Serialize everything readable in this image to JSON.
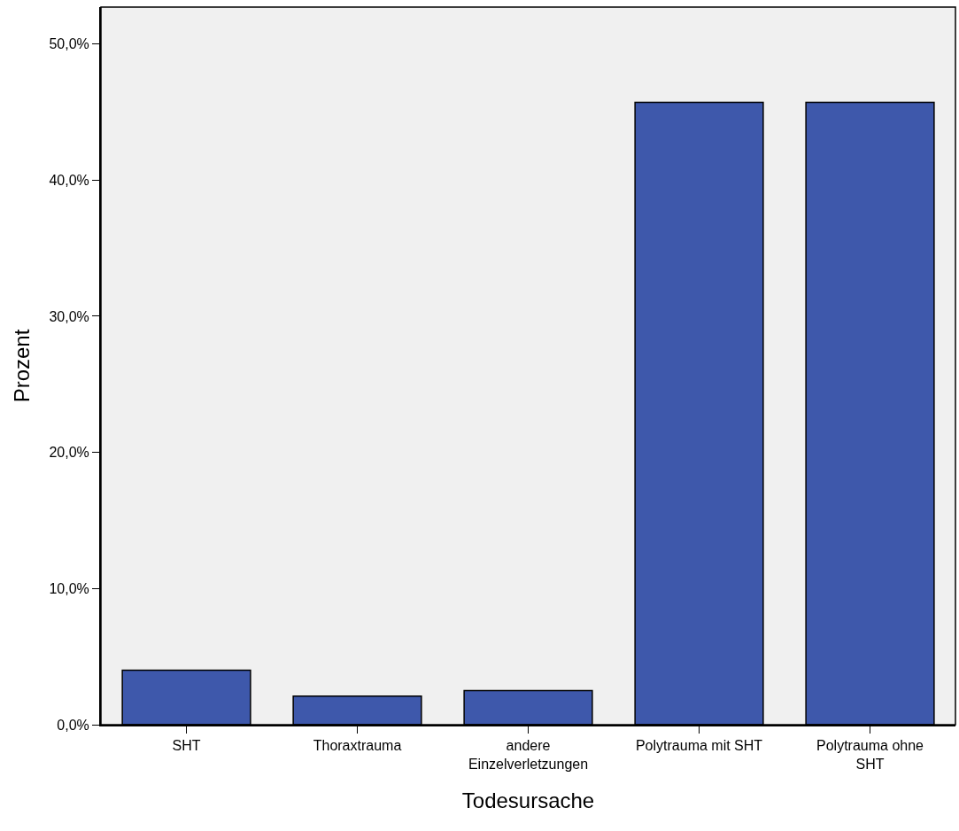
{
  "chart_data": {
    "type": "bar",
    "xlabel": "Todesursache",
    "ylabel": "Prozent",
    "categories": [
      "SHT",
      "Thoraxtrauma",
      "andere\nEinzelverletzungen",
      "Polytrauma mit SHT",
      "Polytrauma ohne\nSHT"
    ],
    "values": [
      4.0,
      2.1,
      2.5,
      45.7,
      45.7
    ],
    "color": "#3e58ab",
    "ylim": [
      0,
      52.7
    ],
    "yticks": [
      {
        "value": 0,
        "label": "0,0%"
      },
      {
        "value": 10,
        "label": "10,0%"
      },
      {
        "value": 20,
        "label": "20,0%"
      },
      {
        "value": 30,
        "label": "30,0%"
      },
      {
        "value": 40,
        "label": "40,0%"
      },
      {
        "value": 50,
        "label": "50,0%"
      }
    ],
    "grid": false
  }
}
